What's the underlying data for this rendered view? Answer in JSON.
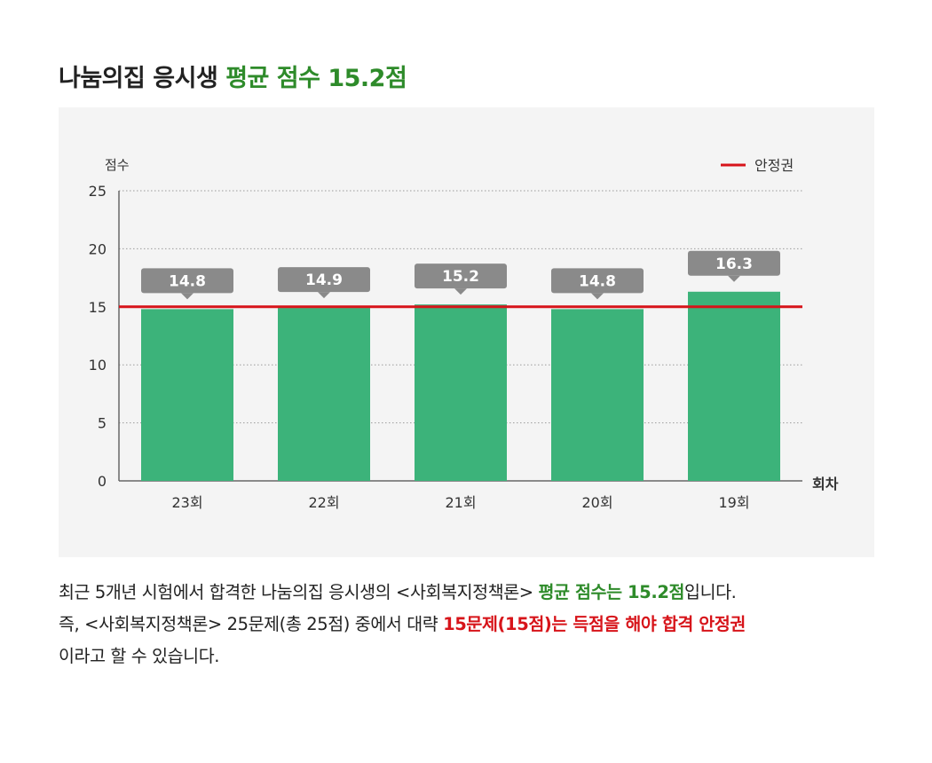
{
  "headline": {
    "prefix": "나눔의집 응시생 ",
    "highlight": "평균 점수 15.2점"
  },
  "colors": {
    "bar": "#3cb37a",
    "safe_line": "#d7141a",
    "label_box": "#8a8a8a",
    "accent_green": "#2e8b2a",
    "accent_red": "#d7141a",
    "panel_bg": "#f4f4f4"
  },
  "chart_data": {
    "type": "bar",
    "ylabel": "점수",
    "xlabel": "회차",
    "ylim": [
      0,
      25
    ],
    "yticks": [
      "0",
      "5",
      "10",
      "15",
      "20",
      "25"
    ],
    "categories": [
      "23회",
      "22회",
      "21회",
      "20회",
      "19회"
    ],
    "values": [
      14.8,
      14.9,
      15.2,
      14.8,
      16.3
    ],
    "value_labels": [
      "14.8",
      "14.9",
      "15.2",
      "14.8",
      "16.3"
    ],
    "reference_line": {
      "name": "안정권",
      "value": 15
    },
    "legend_position": "top-right",
    "grid": "dotted horizontal"
  },
  "description": {
    "line1_a": "최근 5개년 시험에서 합격한 나눔의집 응시생의 <사회복지정책론> ",
    "line1_b": "평균 점수는 15.2점",
    "line1_c": "입니다.",
    "line2_a": "즉, <사회복지정책론> 25문제(총 25점) 중에서 대략 ",
    "line2_b": "15문제(15점)는 득점을 해야 합격 안정권",
    "line3": "이라고 할 수 있습니다."
  }
}
